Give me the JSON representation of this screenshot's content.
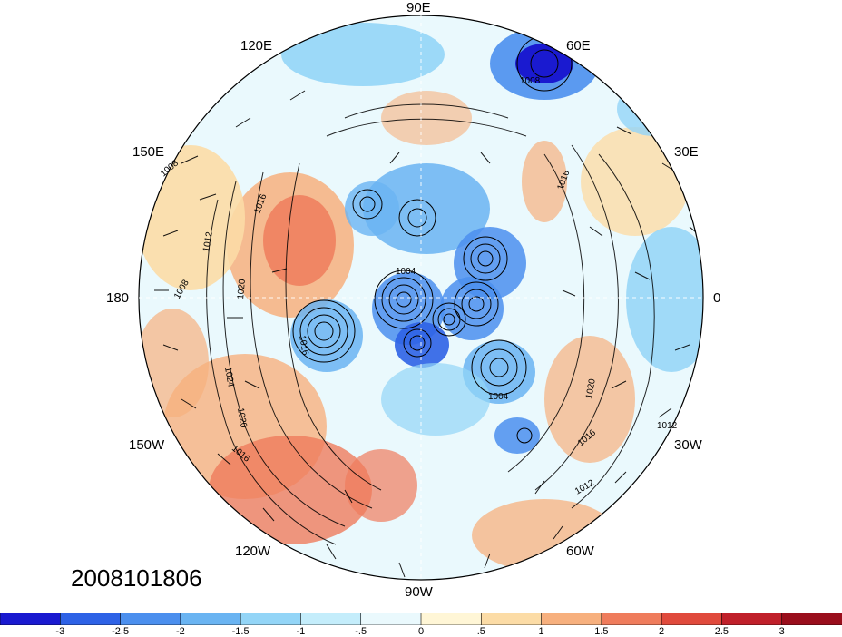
{
  "map": {
    "projection": "north polar stereographic",
    "longitude_labels": {
      "top": "90E",
      "upper_left": "120E",
      "upper_right": "60E",
      "left_upper": "150E",
      "right_upper": "30E",
      "left": "180",
      "right": "0",
      "left_lower": "150W",
      "right_lower": "30W",
      "lower_left": "120W",
      "lower_right": "60W",
      "bottom": "90W"
    },
    "isobar_labels": [
      "1008",
      "1016",
      "1012",
      "1020",
      "1024",
      "1008",
      "1016",
      "1004",
      "1016",
      "1020",
      "1012",
      "1016",
      "1012",
      "1020",
      "1004",
      "1008",
      "1016"
    ],
    "timestamp": "2008101806"
  },
  "colorbar": {
    "ticks": [
      "-3",
      "-2.5",
      "-2",
      "-1.5",
      "-1",
      "-.5",
      "0",
      ".5",
      "1",
      "1.5",
      "2",
      "2.5",
      "3"
    ],
    "colors": [
      "#1a1ad0",
      "#2e62e6",
      "#4b8fee",
      "#6ab4f2",
      "#93d5f7",
      "#c4edfb",
      "#eaf9fd",
      "#fff6d6",
      "#fcdca6",
      "#f7b07e",
      "#ef7c5c",
      "#e04a3c",
      "#c0202a",
      "#9a0e1c"
    ]
  }
}
